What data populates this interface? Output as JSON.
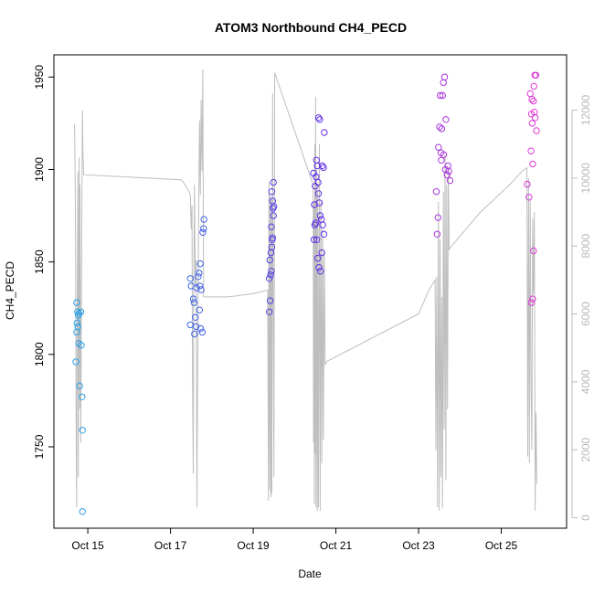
{
  "chart_data": {
    "type": "scatter",
    "title": "ATOM3 Northbound CH4_PECD",
    "xlabel": "Date",
    "ylabel": "CH4_PECD",
    "x_unit": "days (October)",
    "xlim": [
      14.18,
      26.58
    ],
    "ylim": [
      1706,
      1962
    ],
    "x_ticks": [
      {
        "x": 15,
        "label": "Oct 15"
      },
      {
        "x": 17,
        "label": "Oct 17"
      },
      {
        "x": 19,
        "label": "Oct 19"
      },
      {
        "x": 21,
        "label": "Oct 21"
      },
      {
        "x": 23,
        "label": "Oct 23"
      },
      {
        "x": 25,
        "label": "Oct 25"
      }
    ],
    "y_ticks": [
      1750,
      1800,
      1850,
      1900,
      1950
    ],
    "y2_ticks": [
      0,
      2000,
      4000,
      6000,
      8000,
      10000,
      12000
    ],
    "y2lim": [
      -310,
      13630
    ],
    "y2_color": "#bebebe",
    "grid": false,
    "point_colors": {
      "start": "#29a3e8",
      "mid": "#5a2ee6",
      "end": "#e03ad6"
    },
    "series": [
      {
        "type": "scatter",
        "points": [
          [
            14.73,
            1828
          ],
          [
            14.75,
            1823
          ],
          [
            14.77,
            1821
          ],
          [
            14.74,
            1817
          ],
          [
            14.76,
            1815
          ],
          [
            14.73,
            1812
          ],
          [
            14.79,
            1822
          ],
          [
            14.83,
            1823
          ],
          [
            14.78,
            1806
          ],
          [
            14.84,
            1805
          ],
          [
            14.71,
            1796
          ],
          [
            14.8,
            1783
          ],
          [
            14.86,
            1777
          ],
          [
            14.87,
            1759
          ],
          [
            14.87,
            1715
          ],
          [
            17.48,
            1841
          ],
          [
            17.5,
            1837
          ],
          [
            17.55,
            1830
          ],
          [
            17.57,
            1828
          ],
          [
            17.63,
            1836
          ],
          [
            17.6,
            1820
          ],
          [
            17.62,
            1815
          ],
          [
            17.58,
            1811
          ],
          [
            17.48,
            1816
          ],
          [
            17.69,
            1844
          ],
          [
            17.72,
            1849
          ],
          [
            17.67,
            1842
          ],
          [
            17.71,
            1837
          ],
          [
            17.74,
            1835
          ],
          [
            17.7,
            1824
          ],
          [
            17.73,
            1814
          ],
          [
            17.77,
            1812
          ],
          [
            17.78,
            1866
          ],
          [
            17.8,
            1868
          ],
          [
            17.81,
            1873
          ],
          [
            19.39,
            1823
          ],
          [
            19.41,
            1829
          ],
          [
            19.39,
            1841
          ],
          [
            19.42,
            1843
          ],
          [
            19.44,
            1845
          ],
          [
            19.4,
            1851
          ],
          [
            19.43,
            1855
          ],
          [
            19.45,
            1858
          ],
          [
            19.46,
            1862
          ],
          [
            19.47,
            1863
          ],
          [
            19.44,
            1869
          ],
          [
            19.49,
            1875
          ],
          [
            19.48,
            1879
          ],
          [
            19.5,
            1880
          ],
          [
            19.47,
            1883
          ],
          [
            19.45,
            1888
          ],
          [
            19.49,
            1893
          ],
          [
            20.47,
            1862
          ],
          [
            20.49,
            1870
          ],
          [
            20.51,
            1871
          ],
          [
            20.48,
            1881
          ],
          [
            20.5,
            1891
          ],
          [
            20.52,
            1896
          ],
          [
            20.46,
            1898
          ],
          [
            20.53,
            1905
          ],
          [
            20.55,
            1902
          ],
          [
            20.57,
            1893
          ],
          [
            20.58,
            1887
          ],
          [
            20.6,
            1882
          ],
          [
            20.62,
            1875
          ],
          [
            20.65,
            1873
          ],
          [
            20.68,
            1870
          ],
          [
            20.71,
            1865
          ],
          [
            20.54,
            1862
          ],
          [
            20.56,
            1852
          ],
          [
            20.59,
            1847
          ],
          [
            20.63,
            1845
          ],
          [
            20.58,
            1928
          ],
          [
            20.61,
            1927
          ],
          [
            20.72,
            1920
          ],
          [
            20.67,
            1902
          ],
          [
            20.7,
            1901
          ],
          [
            20.66,
            1855
          ],
          [
            23.43,
            1888
          ],
          [
            23.47,
            1874
          ],
          [
            23.45,
            1865
          ],
          [
            23.48,
            1912
          ],
          [
            23.51,
            1923
          ],
          [
            23.54,
            1909
          ],
          [
            23.55,
            1905
          ],
          [
            23.61,
            1908
          ],
          [
            23.65,
            1900
          ],
          [
            23.69,
            1897
          ],
          [
            23.71,
            1902
          ],
          [
            23.73,
            1899
          ],
          [
            23.76,
            1894
          ],
          [
            23.52,
            1940
          ],
          [
            23.58,
            1940
          ],
          [
            23.6,
            1947
          ],
          [
            23.63,
            1950
          ],
          [
            23.56,
            1922
          ],
          [
            23.66,
            1927
          ],
          [
            25.63,
            1892
          ],
          [
            25.67,
            1885
          ],
          [
            25.72,
            1910
          ],
          [
            25.76,
            1903
          ],
          [
            25.73,
            1930
          ],
          [
            25.75,
            1925
          ],
          [
            25.78,
            1937
          ],
          [
            25.8,
            1931
          ],
          [
            25.82,
            1928
          ],
          [
            25.7,
            1941
          ],
          [
            25.74,
            1938
          ],
          [
            25.79,
            1945
          ],
          [
            25.81,
            1951
          ],
          [
            25.84,
            1951
          ],
          [
            25.85,
            1921
          ],
          [
            25.78,
            1856
          ],
          [
            25.76,
            1830
          ],
          [
            25.73,
            1828
          ]
        ]
      },
      {
        "type": "line",
        "axis": "right",
        "color": "#bebebe",
        "points": [
          [
            14.68,
            11600
          ],
          [
            14.7,
            9200
          ],
          [
            14.72,
            2100
          ],
          [
            14.73,
            300
          ],
          [
            14.74,
            5000
          ],
          [
            14.76,
            10200
          ],
          [
            14.77,
            1200
          ],
          [
            14.78,
            6400
          ],
          [
            14.79,
            10600
          ],
          [
            14.8,
            3200
          ],
          [
            14.81,
            9800
          ],
          [
            14.83,
            2200
          ],
          [
            14.85,
            7600
          ],
          [
            14.87,
            12000
          ],
          [
            14.88,
            10800
          ],
          [
            14.9,
            10100
          ],
          [
            17.25,
            9950
          ],
          [
            17.3,
            9900
          ],
          [
            17.35,
            9800
          ],
          [
            17.45,
            9600
          ],
          [
            17.48,
            9500
          ],
          [
            17.5,
            8500
          ],
          [
            17.52,
            9200
          ],
          [
            17.53,
            4300
          ],
          [
            17.55,
            1300
          ],
          [
            17.56,
            6400
          ],
          [
            17.58,
            9800
          ],
          [
            17.6,
            6800
          ],
          [
            17.62,
            7600
          ],
          [
            17.64,
            300
          ],
          [
            17.66,
            4600
          ],
          [
            17.68,
            8700
          ],
          [
            17.7,
            11700
          ],
          [
            17.72,
            9500
          ],
          [
            17.74,
            12300
          ],
          [
            17.76,
            10200
          ],
          [
            17.78,
            13200
          ],
          [
            17.8,
            6500
          ],
          [
            18.4,
            6500
          ],
          [
            19.0,
            6600
          ],
          [
            19.35,
            6700
          ],
          [
            19.37,
            500
          ],
          [
            19.38,
            9900
          ],
          [
            19.4,
            800
          ],
          [
            19.41,
            9500
          ],
          [
            19.43,
            600
          ],
          [
            19.44,
            9400
          ],
          [
            19.45,
            700
          ],
          [
            19.47,
            12500
          ],
          [
            19.48,
            7200
          ],
          [
            19.5,
            1200
          ],
          [
            19.52,
            13100
          ],
          [
            20.45,
            9800
          ],
          [
            20.46,
            2200
          ],
          [
            20.47,
            9300
          ],
          [
            20.48,
            400
          ],
          [
            20.49,
            11000
          ],
          [
            20.5,
            1900
          ],
          [
            20.51,
            12400
          ],
          [
            20.52,
            300
          ],
          [
            20.53,
            10300
          ],
          [
            20.55,
            200
          ],
          [
            20.56,
            9600
          ],
          [
            20.58,
            300
          ],
          [
            20.6,
            11000
          ],
          [
            20.62,
            200
          ],
          [
            20.64,
            9300
          ],
          [
            20.66,
            1600
          ],
          [
            20.68,
            8500
          ],
          [
            20.7,
            2300
          ],
          [
            20.72,
            7800
          ],
          [
            20.74,
            4500
          ],
          [
            20.78,
            4600
          ],
          [
            23.0,
            6000
          ],
          [
            23.25,
            6700
          ],
          [
            23.4,
            7000
          ],
          [
            23.42,
            2000
          ],
          [
            23.44,
            7100
          ],
          [
            23.46,
            300
          ],
          [
            23.48,
            9300
          ],
          [
            23.5,
            200
          ],
          [
            23.52,
            8200
          ],
          [
            23.54,
            1200
          ],
          [
            23.56,
            6500
          ],
          [
            23.58,
            300
          ],
          [
            23.6,
            9600
          ],
          [
            23.62,
            2600
          ],
          [
            23.64,
            10700
          ],
          [
            23.66,
            1100
          ],
          [
            23.68,
            9800
          ],
          [
            23.7,
            3200
          ],
          [
            23.72,
            10300
          ],
          [
            23.74,
            7900
          ],
          [
            23.8,
            8000
          ],
          [
            24.5,
            9000
          ],
          [
            25.2,
            9800
          ],
          [
            25.5,
            10200
          ],
          [
            25.62,
            10300
          ],
          [
            25.64,
            1800
          ],
          [
            25.66,
            10000
          ],
          [
            25.68,
            1600
          ],
          [
            25.7,
            9400
          ],
          [
            25.72,
            3900
          ],
          [
            25.74,
            2000
          ],
          [
            25.76,
            8800
          ],
          [
            25.78,
            6600
          ],
          [
            25.8,
            9000
          ],
          [
            25.82,
            200
          ],
          [
            25.84,
            3100
          ],
          [
            25.86,
            1000
          ]
        ]
      }
    ]
  }
}
